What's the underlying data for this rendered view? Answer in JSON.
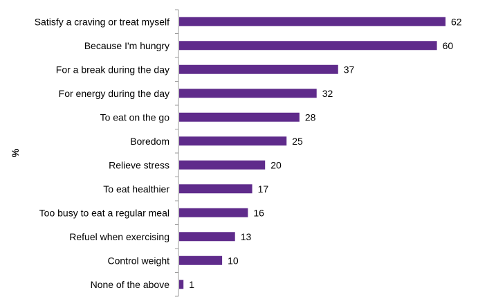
{
  "chart_data": {
    "type": "bar",
    "orientation": "horizontal",
    "categories": [
      "Satisfy a craving or treat myself",
      "Because I'm hungry",
      "For a break during the day",
      "For energy during the day",
      "To eat on the go",
      "Boredom",
      "Relieve stress",
      "To eat healthier",
      "Too busy to eat a regular meal",
      "Refuel when exercising",
      "Control  weight",
      "None of the above"
    ],
    "values": [
      62,
      60,
      37,
      32,
      28,
      25,
      20,
      17,
      16,
      13,
      10,
      1
    ],
    "data_labels": [
      "62",
      "60",
      "37",
      "32",
      "28",
      "25",
      "20",
      "17",
      "16",
      "13",
      "10",
      "1"
    ],
    "ylabel": "%",
    "xlim": [
      0,
      62
    ],
    "grid": false,
    "legend": "none",
    "bar_color": "#5f2b8b",
    "axis_color": "#999999"
  }
}
